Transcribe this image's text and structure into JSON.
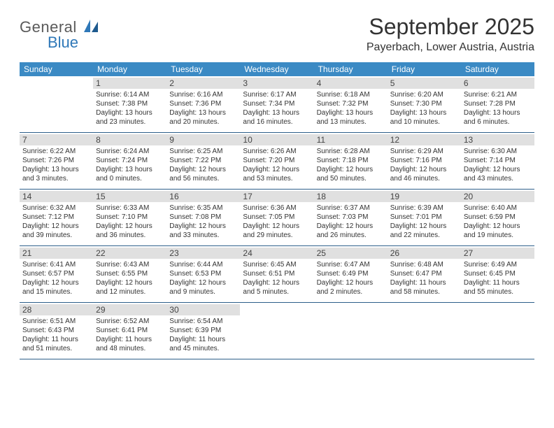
{
  "brand": {
    "top": "General",
    "bottom": "Blue"
  },
  "title": "September 2025",
  "location": "Payerbach, Lower Austria, Austria",
  "day_headers": [
    "Sunday",
    "Monday",
    "Tuesday",
    "Wednesday",
    "Thursday",
    "Friday",
    "Saturday"
  ],
  "colors": {
    "header_bg": "#3b8ac4",
    "header_text": "#ffffff",
    "daynum_bg": "#e0e0e0",
    "rule": "#2d5f8a",
    "brand_blue": "#2f78b8",
    "text": "#333333",
    "background": "#ffffff"
  },
  "typography": {
    "title_fontsize": 32,
    "location_fontsize": 16,
    "dayhead_fontsize": 12,
    "daynum_fontsize": 12,
    "detail_fontsize": 10,
    "logo_fontsize": 22
  },
  "weeks": [
    [
      {
        "day": "",
        "sunrise": "",
        "sunset": "",
        "daylight": ""
      },
      {
        "day": "1",
        "sunrise": "Sunrise: 6:14 AM",
        "sunset": "Sunset: 7:38 PM",
        "daylight": "Daylight: 13 hours and 23 minutes."
      },
      {
        "day": "2",
        "sunrise": "Sunrise: 6:16 AM",
        "sunset": "Sunset: 7:36 PM",
        "daylight": "Daylight: 13 hours and 20 minutes."
      },
      {
        "day": "3",
        "sunrise": "Sunrise: 6:17 AM",
        "sunset": "Sunset: 7:34 PM",
        "daylight": "Daylight: 13 hours and 16 minutes."
      },
      {
        "day": "4",
        "sunrise": "Sunrise: 6:18 AM",
        "sunset": "Sunset: 7:32 PM",
        "daylight": "Daylight: 13 hours and 13 minutes."
      },
      {
        "day": "5",
        "sunrise": "Sunrise: 6:20 AM",
        "sunset": "Sunset: 7:30 PM",
        "daylight": "Daylight: 13 hours and 10 minutes."
      },
      {
        "day": "6",
        "sunrise": "Sunrise: 6:21 AM",
        "sunset": "Sunset: 7:28 PM",
        "daylight": "Daylight: 13 hours and 6 minutes."
      }
    ],
    [
      {
        "day": "7",
        "sunrise": "Sunrise: 6:22 AM",
        "sunset": "Sunset: 7:26 PM",
        "daylight": "Daylight: 13 hours and 3 minutes."
      },
      {
        "day": "8",
        "sunrise": "Sunrise: 6:24 AM",
        "sunset": "Sunset: 7:24 PM",
        "daylight": "Daylight: 13 hours and 0 minutes."
      },
      {
        "day": "9",
        "sunrise": "Sunrise: 6:25 AM",
        "sunset": "Sunset: 7:22 PM",
        "daylight": "Daylight: 12 hours and 56 minutes."
      },
      {
        "day": "10",
        "sunrise": "Sunrise: 6:26 AM",
        "sunset": "Sunset: 7:20 PM",
        "daylight": "Daylight: 12 hours and 53 minutes."
      },
      {
        "day": "11",
        "sunrise": "Sunrise: 6:28 AM",
        "sunset": "Sunset: 7:18 PM",
        "daylight": "Daylight: 12 hours and 50 minutes."
      },
      {
        "day": "12",
        "sunrise": "Sunrise: 6:29 AM",
        "sunset": "Sunset: 7:16 PM",
        "daylight": "Daylight: 12 hours and 46 minutes."
      },
      {
        "day": "13",
        "sunrise": "Sunrise: 6:30 AM",
        "sunset": "Sunset: 7:14 PM",
        "daylight": "Daylight: 12 hours and 43 minutes."
      }
    ],
    [
      {
        "day": "14",
        "sunrise": "Sunrise: 6:32 AM",
        "sunset": "Sunset: 7:12 PM",
        "daylight": "Daylight: 12 hours and 39 minutes."
      },
      {
        "day": "15",
        "sunrise": "Sunrise: 6:33 AM",
        "sunset": "Sunset: 7:10 PM",
        "daylight": "Daylight: 12 hours and 36 minutes."
      },
      {
        "day": "16",
        "sunrise": "Sunrise: 6:35 AM",
        "sunset": "Sunset: 7:08 PM",
        "daylight": "Daylight: 12 hours and 33 minutes."
      },
      {
        "day": "17",
        "sunrise": "Sunrise: 6:36 AM",
        "sunset": "Sunset: 7:05 PM",
        "daylight": "Daylight: 12 hours and 29 minutes."
      },
      {
        "day": "18",
        "sunrise": "Sunrise: 6:37 AM",
        "sunset": "Sunset: 7:03 PM",
        "daylight": "Daylight: 12 hours and 26 minutes."
      },
      {
        "day": "19",
        "sunrise": "Sunrise: 6:39 AM",
        "sunset": "Sunset: 7:01 PM",
        "daylight": "Daylight: 12 hours and 22 minutes."
      },
      {
        "day": "20",
        "sunrise": "Sunrise: 6:40 AM",
        "sunset": "Sunset: 6:59 PM",
        "daylight": "Daylight: 12 hours and 19 minutes."
      }
    ],
    [
      {
        "day": "21",
        "sunrise": "Sunrise: 6:41 AM",
        "sunset": "Sunset: 6:57 PM",
        "daylight": "Daylight: 12 hours and 15 minutes."
      },
      {
        "day": "22",
        "sunrise": "Sunrise: 6:43 AM",
        "sunset": "Sunset: 6:55 PM",
        "daylight": "Daylight: 12 hours and 12 minutes."
      },
      {
        "day": "23",
        "sunrise": "Sunrise: 6:44 AM",
        "sunset": "Sunset: 6:53 PM",
        "daylight": "Daylight: 12 hours and 9 minutes."
      },
      {
        "day": "24",
        "sunrise": "Sunrise: 6:45 AM",
        "sunset": "Sunset: 6:51 PM",
        "daylight": "Daylight: 12 hours and 5 minutes."
      },
      {
        "day": "25",
        "sunrise": "Sunrise: 6:47 AM",
        "sunset": "Sunset: 6:49 PM",
        "daylight": "Daylight: 12 hours and 2 minutes."
      },
      {
        "day": "26",
        "sunrise": "Sunrise: 6:48 AM",
        "sunset": "Sunset: 6:47 PM",
        "daylight": "Daylight: 11 hours and 58 minutes."
      },
      {
        "day": "27",
        "sunrise": "Sunrise: 6:49 AM",
        "sunset": "Sunset: 6:45 PM",
        "daylight": "Daylight: 11 hours and 55 minutes."
      }
    ],
    [
      {
        "day": "28",
        "sunrise": "Sunrise: 6:51 AM",
        "sunset": "Sunset: 6:43 PM",
        "daylight": "Daylight: 11 hours and 51 minutes."
      },
      {
        "day": "29",
        "sunrise": "Sunrise: 6:52 AM",
        "sunset": "Sunset: 6:41 PM",
        "daylight": "Daylight: 11 hours and 48 minutes."
      },
      {
        "day": "30",
        "sunrise": "Sunrise: 6:54 AM",
        "sunset": "Sunset: 6:39 PM",
        "daylight": "Daylight: 11 hours and 45 minutes."
      },
      {
        "day": "",
        "sunrise": "",
        "sunset": "",
        "daylight": ""
      },
      {
        "day": "",
        "sunrise": "",
        "sunset": "",
        "daylight": ""
      },
      {
        "day": "",
        "sunrise": "",
        "sunset": "",
        "daylight": ""
      },
      {
        "day": "",
        "sunrise": "",
        "sunset": "",
        "daylight": ""
      }
    ]
  ]
}
